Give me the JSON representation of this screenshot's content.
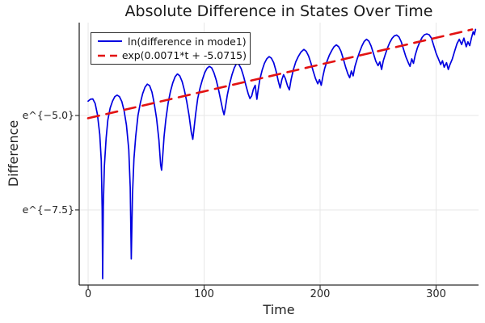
{
  "colors": {
    "blue": "#0000e0",
    "red": "#e31212",
    "grid": "#e7e7e7",
    "axis": "#2a2a2a",
    "tick": "#333333",
    "text": "#1a1a1a"
  },
  "chart_data": {
    "type": "line",
    "title": "Absolute Difference in States Over Time",
    "xlabel": "Time",
    "ylabel": "Difference",
    "y_scale": "ln",
    "xlim": [
      -7.7,
      336.6
    ],
    "ylim": [
      -9.49,
      -2.54
    ],
    "grid": true,
    "legend_position": "top-left",
    "xticks": [
      {
        "v": 0,
        "label": "0"
      },
      {
        "v": 100,
        "label": "100"
      },
      {
        "v": 200,
        "label": "200"
      },
      {
        "v": 300,
        "label": "300"
      }
    ],
    "yticks": [
      {
        "v": -5.0,
        "label": "e^{−5.0}"
      },
      {
        "v": -7.5,
        "label": "e^{−7.5}"
      }
    ],
    "series": [
      {
        "id": "ln-difference-mode1",
        "name": "ln(difference in mode1)",
        "color": "#0000e0",
        "width": 1.7,
        "dash": null,
        "points": [
          [
            0,
            -4.62
          ],
          [
            2,
            -4.57
          ],
          [
            4,
            -4.56
          ],
          [
            6,
            -4.68
          ],
          [
            8,
            -4.97
          ],
          [
            10,
            -5.5
          ],
          [
            11.3,
            -6.2
          ],
          [
            12.1,
            -7.5
          ],
          [
            12.5,
            -9.32
          ],
          [
            13.1,
            -7.4
          ],
          [
            14,
            -6.35
          ],
          [
            15.5,
            -5.6
          ],
          [
            17,
            -5.12
          ],
          [
            19,
            -4.8
          ],
          [
            21,
            -4.62
          ],
          [
            23,
            -4.5
          ],
          [
            25,
            -4.46
          ],
          [
            27,
            -4.5
          ],
          [
            29,
            -4.63
          ],
          [
            31,
            -4.87
          ],
          [
            33,
            -5.25
          ],
          [
            35,
            -5.9
          ],
          [
            36.3,
            -6.9
          ],
          [
            37.2,
            -8.8
          ],
          [
            38.2,
            -7.1
          ],
          [
            39.5,
            -6.15
          ],
          [
            41,
            -5.55
          ],
          [
            43,
            -5.0
          ],
          [
            45,
            -4.67
          ],
          [
            47,
            -4.42
          ],
          [
            49,
            -4.25
          ],
          [
            51,
            -4.17
          ],
          [
            53,
            -4.21
          ],
          [
            55,
            -4.38
          ],
          [
            57,
            -4.68
          ],
          [
            59,
            -5.08
          ],
          [
            61,
            -5.65
          ],
          [
            62.5,
            -6.3
          ],
          [
            63.3,
            -6.45
          ],
          [
            64.2,
            -6.1
          ],
          [
            65.5,
            -5.55
          ],
          [
            67,
            -5.1
          ],
          [
            69,
            -4.67
          ],
          [
            71,
            -4.36
          ],
          [
            73,
            -4.13
          ],
          [
            75,
            -3.97
          ],
          [
            77,
            -3.9
          ],
          [
            79,
            -3.95
          ],
          [
            81,
            -4.1
          ],
          [
            83,
            -4.33
          ],
          [
            85,
            -4.63
          ],
          [
            87,
            -5.0
          ],
          [
            89,
            -5.45
          ],
          [
            90.2,
            -5.63
          ],
          [
            91.3,
            -5.35
          ],
          [
            92.7,
            -4.95
          ],
          [
            94.5,
            -4.55
          ],
          [
            96.5,
            -4.27
          ],
          [
            98.5,
            -4.05
          ],
          [
            100.5,
            -3.87
          ],
          [
            102.5,
            -3.75
          ],
          [
            104.5,
            -3.7
          ],
          [
            106.5,
            -3.74
          ],
          [
            108.5,
            -3.87
          ],
          [
            110.5,
            -4.07
          ],
          [
            112.5,
            -4.33
          ],
          [
            114.5,
            -4.62
          ],
          [
            116,
            -4.85
          ],
          [
            117.2,
            -4.98
          ],
          [
            118.4,
            -4.78
          ],
          [
            120,
            -4.46
          ],
          [
            122,
            -4.16
          ],
          [
            124,
            -3.92
          ],
          [
            126,
            -3.74
          ],
          [
            128,
            -3.62
          ],
          [
            130,
            -3.65
          ],
          [
            132,
            -3.76
          ],
          [
            134,
            -3.96
          ],
          [
            136,
            -4.2
          ],
          [
            138,
            -4.42
          ],
          [
            139.5,
            -4.55
          ],
          [
            141,
            -4.48
          ],
          [
            142.5,
            -4.3
          ],
          [
            144,
            -4.2
          ],
          [
            145.5,
            -4.57
          ],
          [
            146.5,
            -4.35
          ],
          [
            148,
            -4.05
          ],
          [
            150,
            -3.8
          ],
          [
            152,
            -3.62
          ],
          [
            154,
            -3.5
          ],
          [
            156,
            -3.44
          ],
          [
            158,
            -3.48
          ],
          [
            160,
            -3.6
          ],
          [
            162,
            -3.82
          ],
          [
            164,
            -4.1
          ],
          [
            165.5,
            -4.27
          ],
          [
            167,
            -4.05
          ],
          [
            168.5,
            -3.92
          ],
          [
            170,
            -4.02
          ],
          [
            172,
            -4.22
          ],
          [
            173.5,
            -4.32
          ],
          [
            175,
            -4.05
          ],
          [
            177,
            -3.78
          ],
          [
            179,
            -3.58
          ],
          [
            181,
            -3.45
          ],
          [
            183.5,
            -3.32
          ],
          [
            186,
            -3.25
          ],
          [
            188,
            -3.3
          ],
          [
            190,
            -3.42
          ],
          [
            192,
            -3.6
          ],
          [
            194,
            -3.82
          ],
          [
            196,
            -4.02
          ],
          [
            198,
            -4.16
          ],
          [
            199.5,
            -4.05
          ],
          [
            201,
            -4.2
          ],
          [
            202.5,
            -3.95
          ],
          [
            204,
            -3.75
          ],
          [
            206,
            -3.56
          ],
          [
            208,
            -3.4
          ],
          [
            210,
            -3.28
          ],
          [
            212,
            -3.18
          ],
          [
            214,
            -3.13
          ],
          [
            216,
            -3.18
          ],
          [
            218,
            -3.3
          ],
          [
            220,
            -3.5
          ],
          [
            222,
            -3.72
          ],
          [
            224,
            -3.9
          ],
          [
            225.5,
            -4.0
          ],
          [
            227,
            -3.82
          ],
          [
            228.5,
            -3.95
          ],
          [
            230,
            -3.7
          ],
          [
            232,
            -3.5
          ],
          [
            234,
            -3.32
          ],
          [
            236,
            -3.16
          ],
          [
            238,
            -3.04
          ],
          [
            240,
            -2.98
          ],
          [
            242,
            -3.03
          ],
          [
            244,
            -3.16
          ],
          [
            246,
            -3.36
          ],
          [
            248,
            -3.56
          ],
          [
            250,
            -3.68
          ],
          [
            251.5,
            -3.58
          ],
          [
            253,
            -3.78
          ],
          [
            254.5,
            -3.55
          ],
          [
            256,
            -3.4
          ],
          [
            258,
            -3.22
          ],
          [
            260,
            -3.07
          ],
          [
            262,
            -2.96
          ],
          [
            264,
            -2.89
          ],
          [
            266,
            -2.87
          ],
          [
            268,
            -2.92
          ],
          [
            270,
            -3.05
          ],
          [
            272,
            -3.25
          ],
          [
            274,
            -3.45
          ],
          [
            276,
            -3.6
          ],
          [
            277.5,
            -3.7
          ],
          [
            279,
            -3.5
          ],
          [
            280.5,
            -3.62
          ],
          [
            282,
            -3.4
          ],
          [
            284,
            -3.2
          ],
          [
            286,
            -3.05
          ],
          [
            288,
            -2.93
          ],
          [
            290,
            -2.86
          ],
          [
            292,
            -2.84
          ],
          [
            294,
            -2.86
          ],
          [
            296,
            -2.95
          ],
          [
            298,
            -3.15
          ],
          [
            300,
            -3.35
          ],
          [
            302,
            -3.5
          ],
          [
            304,
            -3.65
          ],
          [
            305.5,
            -3.55
          ],
          [
            307,
            -3.72
          ],
          [
            309,
            -3.6
          ],
          [
            310.5,
            -3.78
          ],
          [
            312,
            -3.65
          ],
          [
            314,
            -3.5
          ],
          [
            316,
            -3.3
          ],
          [
            318,
            -3.1
          ],
          [
            320,
            -2.98
          ],
          [
            322,
            -3.12
          ],
          [
            324,
            -2.95
          ],
          [
            326,
            -3.18
          ],
          [
            327.5,
            -3.05
          ],
          [
            329,
            -3.15
          ],
          [
            330.5,
            -2.95
          ],
          [
            332,
            -2.78
          ],
          [
            333,
            -2.86
          ],
          [
            334,
            -2.72
          ]
        ]
      },
      {
        "id": "exp-fit",
        "name": "exp(0.0071*t + -5.0715)",
        "color": "#e31212",
        "width": 2.6,
        "dash": "14 9",
        "fit": {
          "slope": 0.0071,
          "intercept": -5.0715
        },
        "points": [
          [
            0,
            -5.0715
          ],
          [
            331,
            -2.7214
          ]
        ]
      }
    ]
  },
  "legend": {
    "entries": [
      {
        "label": "ln(difference in mode1)"
      },
      {
        "label": "exp(0.0071*t + -5.0715)"
      }
    ]
  }
}
